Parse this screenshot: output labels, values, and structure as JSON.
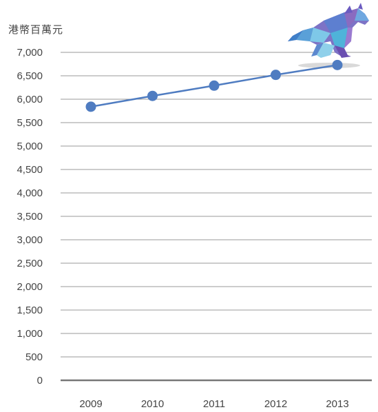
{
  "unit_label": "港幣百萬元",
  "colors": {
    "series": "#4f7cc1",
    "grid": "#9a9a9a",
    "axis": "#777777"
  },
  "decoration": "polygonal-horse-illustration",
  "chart_data": {
    "type": "line",
    "title": "",
    "xlabel": "",
    "ylabel": "港幣百萬元",
    "categories": [
      "2009",
      "2010",
      "2011",
      "2012",
      "2013"
    ],
    "series": [
      {
        "values": [
          5840,
          6070,
          6290,
          6520,
          6730
        ]
      }
    ],
    "ylim": [
      0,
      7000
    ],
    "yticks": [
      0,
      500,
      1000,
      1500,
      2000,
      2500,
      3000,
      3500,
      4000,
      4500,
      5000,
      5500,
      6000,
      6500,
      7000
    ],
    "ytick_labels": [
      "0",
      "500",
      "1,000",
      "1,500",
      "2,000",
      "2,500",
      "3,000",
      "3,500",
      "4,000",
      "4,500",
      "5,000",
      "5,500",
      "6,000",
      "6,500",
      "7,000"
    ],
    "grid": true,
    "legend": "none"
  }
}
